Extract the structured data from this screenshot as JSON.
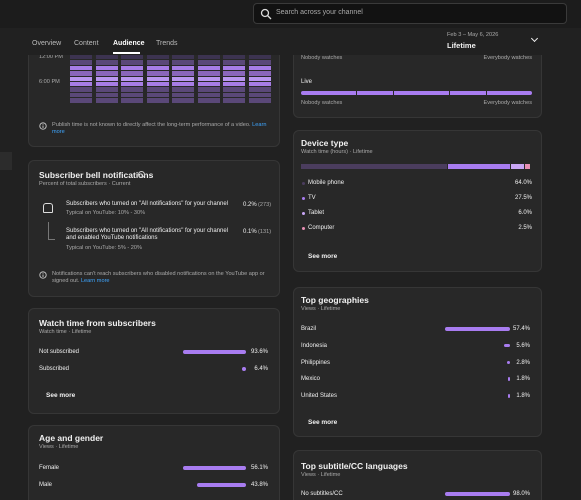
{
  "search": {
    "placeholder": "Search across your channel"
  },
  "tabs": [
    "Overview",
    "Content",
    "Audience",
    "Trends"
  ],
  "date_range": {
    "dates": "Feb 3 – May 6, 2026",
    "period": "Lifetime"
  },
  "publish_time": {
    "hour_labels": [
      "12:00 PM",
      "6:00 PM"
    ],
    "note": "Publish time is not known to directly affect the long-term performance of a video.",
    "link": "Learn more"
  },
  "bell": {
    "title": "Subscriber bell notifications",
    "subtitle": "Percent of total subscribers · Current",
    "rows": [
      {
        "label": "Subscribers who turned on \"All notifications\" for your channel",
        "typical": "Typical on YouTube: 10% - 30%",
        "percent": "0.2%",
        "count": "(273)"
      },
      {
        "label": "Subscribers who turned on \"All notifications\" for your channel and enabled YouTube notifications",
        "typical": "Typical on YouTube: 5% - 20%",
        "percent": "0.1%",
        "count": "(131)"
      }
    ],
    "note": "Notifications can't reach subscribers who disabled notifications on the YouTube app or signed out.",
    "link": "Learn more"
  },
  "watch_subs": {
    "title": "Watch time from subscribers",
    "subtitle": "Watch time · Lifetime",
    "bar_color": "#a87cf0",
    "rows": [
      {
        "label": "Not subscribed",
        "value": 93.6,
        "value_label": "93.6%"
      },
      {
        "label": "Subscribed",
        "value": 6.4,
        "value_label": "6.4%"
      }
    ],
    "see_more": "See more"
  },
  "age_gender": {
    "title": "Age and gender",
    "subtitle": "Views · Lifetime",
    "bar_color": "#a87cf0",
    "rows": [
      {
        "label": "Female",
        "value": 56.1,
        "value_label": "56.1%"
      },
      {
        "label": "Male",
        "value": 43.8,
        "value_label": "43.8%"
      }
    ]
  },
  "retention": {
    "labels": [
      "Nobody watches",
      "Everybody watches"
    ],
    "live": "Live",
    "bar_color": "#a87cf0"
  },
  "device": {
    "title": "Device type",
    "subtitle": "Watch time (hours) · Lifetime",
    "rows": [
      {
        "label": "Mobile phone",
        "value": 64.0,
        "value_label": "64.0%",
        "color": "#4b3d5e"
      },
      {
        "label": "TV",
        "value": 27.5,
        "value_label": "27.5%",
        "color": "#a87cf0"
      },
      {
        "label": "Tablet",
        "value": 6.0,
        "value_label": "6.0%",
        "color": "#c9a6f6"
      },
      {
        "label": "Computer",
        "value": 2.5,
        "value_label": "2.5%",
        "color": "#e88fb4"
      }
    ],
    "see_more": "See more"
  },
  "geographies": {
    "title": "Top geographies",
    "subtitle": "Views · Lifetime",
    "bar_color": "#a87cf0",
    "rows": [
      {
        "label": "Brazil",
        "value": 57.4,
        "value_label": "57.4%"
      },
      {
        "label": "Indonesia",
        "value": 5.6,
        "value_label": "5.6%"
      },
      {
        "label": "Philippines",
        "value": 2.8,
        "value_label": "2.8%"
      },
      {
        "label": "Mexico",
        "value": 1.8,
        "value_label": "1.8%"
      },
      {
        "label": "United States",
        "value": 1.8,
        "value_label": "1.8%"
      }
    ],
    "see_more": "See more"
  },
  "subtitles": {
    "title": "Top subtitle/CC languages",
    "subtitle": "Views · Lifetime",
    "bar_color": "#a87cf0",
    "rows": [
      {
        "label": "No subtitles/CC",
        "value": 98.0,
        "value_label": "98.0%"
      }
    ]
  }
}
